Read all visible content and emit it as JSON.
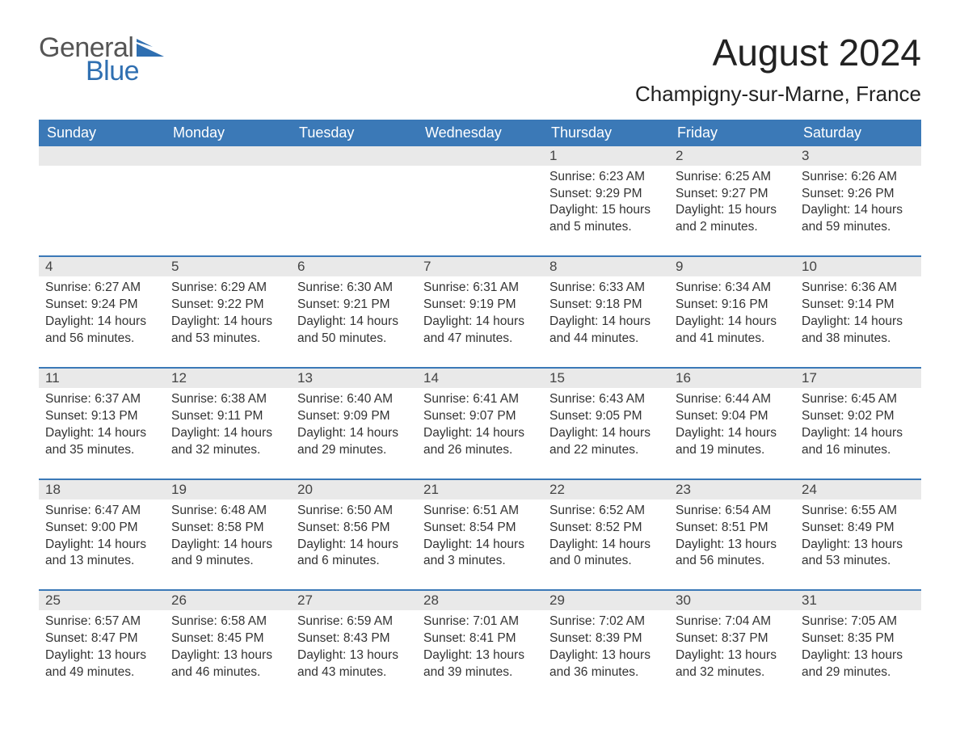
{
  "logo": {
    "word1": "General",
    "word2": "Blue",
    "text_color_word1": "#555555",
    "text_color_word2": "#2f6fb1",
    "accent_color": "#2f6fb1"
  },
  "title": "August 2024",
  "location": "Champigny-sur-Marne, France",
  "colors": {
    "header_bg": "#3b79b7",
    "header_text": "#ffffff",
    "daynum_bg": "#e9e9e9",
    "row_border": "#3b79b7",
    "body_text": "#333333",
    "page_bg": "#ffffff"
  },
  "weekdays": [
    "Sunday",
    "Monday",
    "Tuesday",
    "Wednesday",
    "Thursday",
    "Friday",
    "Saturday"
  ],
  "labels": {
    "sunrise": "Sunrise:",
    "sunset": "Sunset:",
    "daylight": "Daylight:"
  },
  "weeks": [
    [
      null,
      null,
      null,
      null,
      {
        "n": "1",
        "sunrise": "6:23 AM",
        "sunset": "9:29 PM",
        "daylight": "15 hours and 5 minutes."
      },
      {
        "n": "2",
        "sunrise": "6:25 AM",
        "sunset": "9:27 PM",
        "daylight": "15 hours and 2 minutes."
      },
      {
        "n": "3",
        "sunrise": "6:26 AM",
        "sunset": "9:26 PM",
        "daylight": "14 hours and 59 minutes."
      }
    ],
    [
      {
        "n": "4",
        "sunrise": "6:27 AM",
        "sunset": "9:24 PM",
        "daylight": "14 hours and 56 minutes."
      },
      {
        "n": "5",
        "sunrise": "6:29 AM",
        "sunset": "9:22 PM",
        "daylight": "14 hours and 53 minutes."
      },
      {
        "n": "6",
        "sunrise": "6:30 AM",
        "sunset": "9:21 PM",
        "daylight": "14 hours and 50 minutes."
      },
      {
        "n": "7",
        "sunrise": "6:31 AM",
        "sunset": "9:19 PM",
        "daylight": "14 hours and 47 minutes."
      },
      {
        "n": "8",
        "sunrise": "6:33 AM",
        "sunset": "9:18 PM",
        "daylight": "14 hours and 44 minutes."
      },
      {
        "n": "9",
        "sunrise": "6:34 AM",
        "sunset": "9:16 PM",
        "daylight": "14 hours and 41 minutes."
      },
      {
        "n": "10",
        "sunrise": "6:36 AM",
        "sunset": "9:14 PM",
        "daylight": "14 hours and 38 minutes."
      }
    ],
    [
      {
        "n": "11",
        "sunrise": "6:37 AM",
        "sunset": "9:13 PM",
        "daylight": "14 hours and 35 minutes."
      },
      {
        "n": "12",
        "sunrise": "6:38 AM",
        "sunset": "9:11 PM",
        "daylight": "14 hours and 32 minutes."
      },
      {
        "n": "13",
        "sunrise": "6:40 AM",
        "sunset": "9:09 PM",
        "daylight": "14 hours and 29 minutes."
      },
      {
        "n": "14",
        "sunrise": "6:41 AM",
        "sunset": "9:07 PM",
        "daylight": "14 hours and 26 minutes."
      },
      {
        "n": "15",
        "sunrise": "6:43 AM",
        "sunset": "9:05 PM",
        "daylight": "14 hours and 22 minutes."
      },
      {
        "n": "16",
        "sunrise": "6:44 AM",
        "sunset": "9:04 PM",
        "daylight": "14 hours and 19 minutes."
      },
      {
        "n": "17",
        "sunrise": "6:45 AM",
        "sunset": "9:02 PM",
        "daylight": "14 hours and 16 minutes."
      }
    ],
    [
      {
        "n": "18",
        "sunrise": "6:47 AM",
        "sunset": "9:00 PM",
        "daylight": "14 hours and 13 minutes."
      },
      {
        "n": "19",
        "sunrise": "6:48 AM",
        "sunset": "8:58 PM",
        "daylight": "14 hours and 9 minutes."
      },
      {
        "n": "20",
        "sunrise": "6:50 AM",
        "sunset": "8:56 PM",
        "daylight": "14 hours and 6 minutes."
      },
      {
        "n": "21",
        "sunrise": "6:51 AM",
        "sunset": "8:54 PM",
        "daylight": "14 hours and 3 minutes."
      },
      {
        "n": "22",
        "sunrise": "6:52 AM",
        "sunset": "8:52 PM",
        "daylight": "14 hours and 0 minutes."
      },
      {
        "n": "23",
        "sunrise": "6:54 AM",
        "sunset": "8:51 PM",
        "daylight": "13 hours and 56 minutes."
      },
      {
        "n": "24",
        "sunrise": "6:55 AM",
        "sunset": "8:49 PM",
        "daylight": "13 hours and 53 minutes."
      }
    ],
    [
      {
        "n": "25",
        "sunrise": "6:57 AM",
        "sunset": "8:47 PM",
        "daylight": "13 hours and 49 minutes."
      },
      {
        "n": "26",
        "sunrise": "6:58 AM",
        "sunset": "8:45 PM",
        "daylight": "13 hours and 46 minutes."
      },
      {
        "n": "27",
        "sunrise": "6:59 AM",
        "sunset": "8:43 PM",
        "daylight": "13 hours and 43 minutes."
      },
      {
        "n": "28",
        "sunrise": "7:01 AM",
        "sunset": "8:41 PM",
        "daylight": "13 hours and 39 minutes."
      },
      {
        "n": "29",
        "sunrise": "7:02 AM",
        "sunset": "8:39 PM",
        "daylight": "13 hours and 36 minutes."
      },
      {
        "n": "30",
        "sunrise": "7:04 AM",
        "sunset": "8:37 PM",
        "daylight": "13 hours and 32 minutes."
      },
      {
        "n": "31",
        "sunrise": "7:05 AM",
        "sunset": "8:35 PM",
        "daylight": "13 hours and 29 minutes."
      }
    ]
  ]
}
